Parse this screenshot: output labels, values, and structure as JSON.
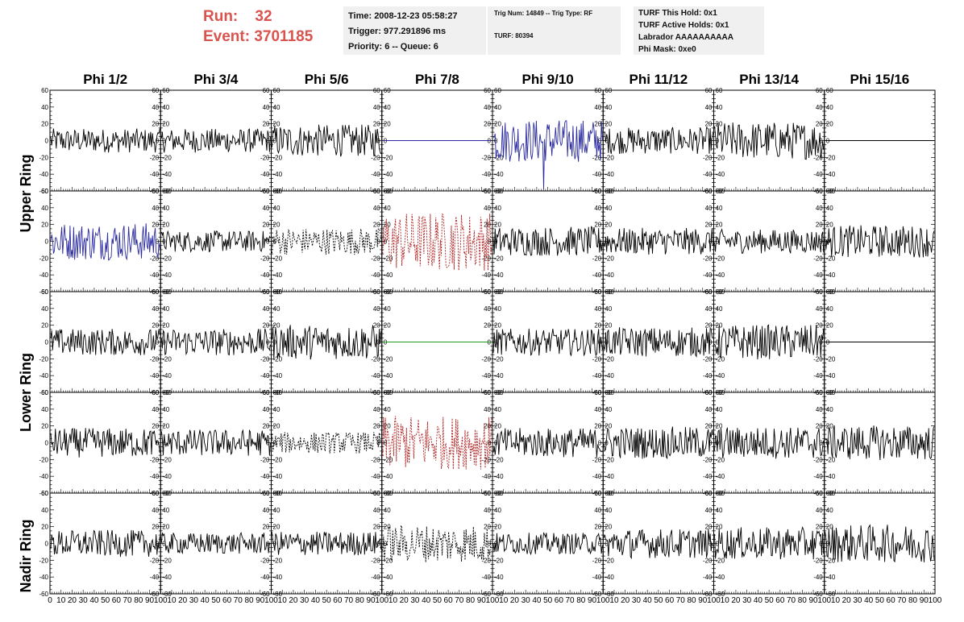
{
  "header": {
    "run_label": "Run:",
    "run_value": "32",
    "event_label": "Event:",
    "event_value": "3701185",
    "time_line": "Time: 2008-12-23 05:58:27",
    "trigger_line": "Trigger: 977.291896 ms",
    "priority_line": "Priority: 6 -- Queue: 6",
    "trig_line": "Trig Num: 14849 -- Trig Type: RF",
    "turf_line": "TURF: 80394",
    "turf_hold_line": "TURF This Hold: 0x1",
    "turf_active_line": "TURF Active Holds: 0x1",
    "labrador_line": "Labrador AAAAAAAAAA",
    "phi_mask_line": "Phi Mask: 0xe0"
  },
  "colors": {
    "normal": "#000000",
    "blue": "#2b2ba0",
    "red": "#b02020",
    "green": "#1c9a1c",
    "info_bg": "#f0f0f0",
    "run_text": "#d9534f"
  },
  "chart_data": {
    "type": "line",
    "columns": [
      "Phi 1/2",
      "Phi 3/4",
      "Phi 5/6",
      "Phi 7/8",
      "Phi 9/10",
      "Phi 11/12",
      "Phi 13/14",
      "Phi 15/16"
    ],
    "ring_labels": [
      "Upper Ring",
      "Lower Ring",
      "Nadir Ring"
    ],
    "ylim": [
      -60,
      60
    ],
    "xlim": [
      0,
      100
    ],
    "y_ticks": [
      -60,
      -40,
      -20,
      0,
      20,
      40,
      60
    ],
    "x_tick_labels": [
      "0",
      "10",
      "20",
      "30",
      "40",
      "50",
      "60",
      "70",
      "80",
      "90",
      "100"
    ],
    "panels": [
      [
        {
          "style": "solid",
          "color": "normal",
          "amp": 9
        },
        {
          "style": "solid",
          "color": "normal",
          "amp": 9
        },
        {
          "style": "solid",
          "color": "normal",
          "amp": 12
        },
        {
          "style": "flat",
          "color": "blue",
          "amp": 0
        },
        {
          "style": "solid",
          "color": "blue",
          "amp": 16,
          "spike": -58
        },
        {
          "style": "solid",
          "color": "normal",
          "amp": 10
        },
        {
          "style": "solid",
          "color": "normal",
          "amp": 14
        },
        {
          "style": "flat",
          "color": "normal",
          "amp": 0
        }
      ],
      [
        {
          "style": "solid",
          "color": "blue",
          "amp": 14
        },
        {
          "style": "solid",
          "color": "normal",
          "amp": 8
        },
        {
          "style": "dashed",
          "color": "normal",
          "amp": 10
        },
        {
          "style": "dashed",
          "color": "red",
          "amp": 22
        },
        {
          "style": "solid",
          "color": "normal",
          "amp": 11
        },
        {
          "style": "solid",
          "color": "normal",
          "amp": 10
        },
        {
          "style": "solid",
          "color": "normal",
          "amp": 9
        },
        {
          "style": "solid",
          "color": "normal",
          "amp": 12
        }
      ],
      [
        {
          "style": "solid",
          "color": "normal",
          "amp": 10
        },
        {
          "style": "solid",
          "color": "normal",
          "amp": 10
        },
        {
          "style": "solid",
          "color": "normal",
          "amp": 13
        },
        {
          "style": "flat",
          "color": "green",
          "amp": 0
        },
        {
          "style": "solid",
          "color": "normal",
          "amp": 10
        },
        {
          "style": "solid",
          "color": "normal",
          "amp": 11
        },
        {
          "style": "solid",
          "color": "normal",
          "amp": 13
        },
        {
          "style": "flat",
          "color": "normal",
          "amp": 0
        }
      ],
      [
        {
          "style": "solid",
          "color": "normal",
          "amp": 11
        },
        {
          "style": "solid",
          "color": "normal",
          "amp": 10
        },
        {
          "style": "dashed",
          "color": "normal",
          "amp": 8
        },
        {
          "style": "dashed",
          "color": "red",
          "amp": 20
        },
        {
          "style": "solid",
          "color": "normal",
          "amp": 11
        },
        {
          "style": "solid",
          "color": "normal",
          "amp": 12
        },
        {
          "style": "solid",
          "color": "normal",
          "amp": 12
        },
        {
          "style": "solid",
          "color": "normal",
          "amp": 13
        }
      ],
      [
        {
          "style": "solid",
          "color": "normal",
          "amp": 10
        },
        {
          "style": "solid",
          "color": "normal",
          "amp": 8
        },
        {
          "style": "solid",
          "color": "normal",
          "amp": 9
        },
        {
          "style": "dashed",
          "color": "normal",
          "amp": 14
        },
        {
          "style": "solid",
          "color": "normal",
          "amp": 8
        },
        {
          "style": "solid",
          "color": "normal",
          "amp": 11
        },
        {
          "style": "solid",
          "color": "normal",
          "amp": 12
        },
        {
          "style": "solid",
          "color": "normal",
          "amp": 14
        }
      ]
    ]
  }
}
